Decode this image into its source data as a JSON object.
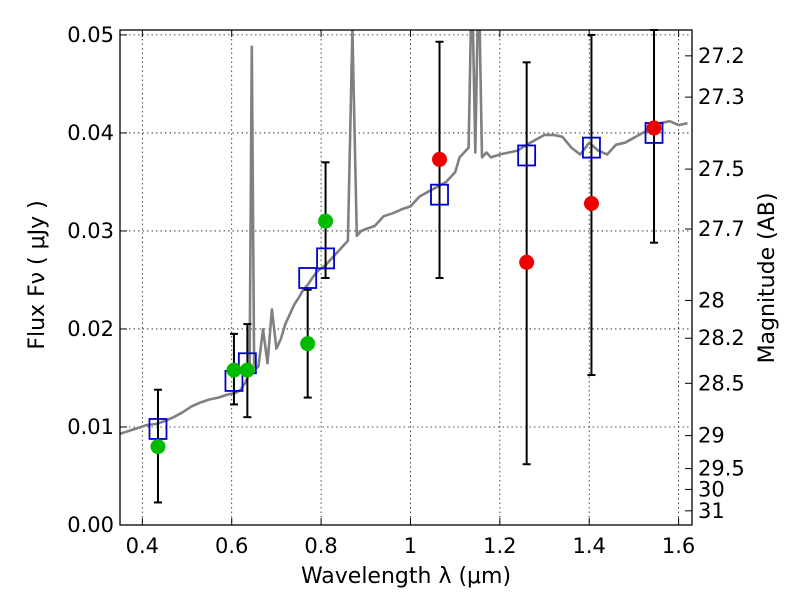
{
  "chart_data": {
    "type": "scatter",
    "xlabel": "Wavelength  λ (μm)",
    "ylabel": "Flux  Fν  ( μJy )",
    "y2label": "Magnitude (AB)",
    "xlim": [
      0.35,
      1.63
    ],
    "ylim": [
      0.0,
      0.0505
    ],
    "grid": true,
    "x_ticks": [
      {
        "value": 0.4,
        "label": "0.4"
      },
      {
        "value": 0.6,
        "label": "0.6"
      },
      {
        "value": 0.8,
        "label": "0.8"
      },
      {
        "value": 1.0,
        "label": "1"
      },
      {
        "value": 1.2,
        "label": "1.2"
      },
      {
        "value": 1.4,
        "label": "1.4"
      },
      {
        "value": 1.6,
        "label": "1.6"
      }
    ],
    "y_ticks": [
      {
        "value": 0.0,
        "label": "0.00"
      },
      {
        "value": 0.01,
        "label": "0.01"
      },
      {
        "value": 0.02,
        "label": "0.02"
      },
      {
        "value": 0.03,
        "label": "0.03"
      },
      {
        "value": 0.04,
        "label": "0.04"
      },
      {
        "value": 0.05,
        "label": "0.05"
      }
    ],
    "y2_ticks": [
      {
        "mag": 27.2,
        "label": "27.2"
      },
      {
        "mag": 27.3,
        "label": "27.3"
      },
      {
        "mag": 27.5,
        "label": "27.5"
      },
      {
        "mag": 27.7,
        "label": "27.7"
      },
      {
        "mag": 28,
        "label": "28"
      },
      {
        "mag": 28.2,
        "label": "28.2"
      },
      {
        "mag": 28.5,
        "label": "28.5"
      },
      {
        "mag": 29,
        "label": "29"
      },
      {
        "mag": 29.5,
        "label": "29.5"
      },
      {
        "mag": 30,
        "label": "30"
      },
      {
        "mag": 31,
        "label": "31"
      }
    ],
    "series": [
      {
        "kind": "line",
        "color": "#808080",
        "x": [
          0.35,
          0.37,
          0.39,
          0.41,
          0.43,
          0.45,
          0.47,
          0.49,
          0.51,
          0.53,
          0.55,
          0.57,
          0.59,
          0.61,
          0.62,
          0.63,
          0.635,
          0.64,
          0.645,
          0.65,
          0.655,
          0.66,
          0.67,
          0.68,
          0.69,
          0.7,
          0.71,
          0.72,
          0.73,
          0.74,
          0.75,
          0.76,
          0.77,
          0.78,
          0.79,
          0.8,
          0.81,
          0.82,
          0.83,
          0.84,
          0.85,
          0.86,
          0.87,
          0.88,
          0.89,
          0.9,
          0.92,
          0.94,
          0.96,
          0.98,
          1.0,
          1.02,
          1.04,
          1.06,
          1.08,
          1.1,
          1.11,
          1.12,
          1.13,
          1.135,
          1.14,
          1.145,
          1.15,
          1.155,
          1.16,
          1.17,
          1.18,
          1.2,
          1.22,
          1.24,
          1.26,
          1.28,
          1.3,
          1.32,
          1.34,
          1.36,
          1.38,
          1.4,
          1.42,
          1.44,
          1.46,
          1.48,
          1.5,
          1.52,
          1.54,
          1.56,
          1.58,
          1.6,
          1.62
        ],
        "y": [
          0.0093,
          0.0096,
          0.0099,
          0.0102,
          0.0103,
          0.0106,
          0.011,
          0.0115,
          0.0121,
          0.0125,
          0.0128,
          0.013,
          0.0133,
          0.0135,
          0.0138,
          0.0145,
          0.015,
          0.016,
          0.0488,
          0.0165,
          0.016,
          0.0162,
          0.02,
          0.0165,
          0.022,
          0.018,
          0.019,
          0.0205,
          0.0215,
          0.0225,
          0.0232,
          0.024,
          0.0245,
          0.0252,
          0.0258,
          0.0262,
          0.0265,
          0.027,
          0.0275,
          0.028,
          0.0285,
          0.029,
          0.0505,
          0.0295,
          0.03,
          0.0302,
          0.0305,
          0.0315,
          0.0318,
          0.0322,
          0.0325,
          0.0335,
          0.034,
          0.0345,
          0.035,
          0.036,
          0.0375,
          0.038,
          0.0385,
          0.0505,
          0.0505,
          0.038,
          0.0505,
          0.0505,
          0.0375,
          0.038,
          0.0375,
          0.0378,
          0.038,
          0.0382,
          0.0388,
          0.0393,
          0.0398,
          0.0398,
          0.0396,
          0.0385,
          0.0378,
          0.039,
          0.0382,
          0.0378,
          0.0388,
          0.039,
          0.0395,
          0.04,
          0.0405,
          0.041,
          0.0412,
          0.0408,
          0.041
        ]
      },
      {
        "kind": "open-square",
        "color": "#0000cc",
        "x": [
          0.435,
          0.605,
          0.635,
          0.77,
          0.81,
          1.065,
          1.26,
          1.405,
          1.545
        ],
        "y": [
          0.0098,
          0.0147,
          0.0165,
          0.0252,
          0.0272,
          0.0337,
          0.0377,
          0.0385,
          0.04
        ]
      },
      {
        "kind": "errorbar",
        "color": "#000000",
        "x": [
          0.435,
          0.605,
          0.635,
          0.77,
          0.81,
          1.065,
          1.26,
          1.405,
          1.545
        ],
        "y": [
          0.008,
          0.0158,
          0.0158,
          0.0185,
          0.031,
          0.0373,
          0.0268,
          0.0328,
          0.0405
        ],
        "ylow": [
          0.0023,
          0.0123,
          0.011,
          0.013,
          0.0252,
          0.0252,
          0.0062,
          0.0153,
          0.0288
        ],
        "yhigh": [
          0.0138,
          0.0195,
          0.0205,
          0.024,
          0.037,
          0.0493,
          0.0472,
          0.05,
          0.0505
        ]
      },
      {
        "kind": "filled-circle",
        "color": "#00bb00",
        "x": [
          0.435,
          0.605,
          0.635,
          0.77,
          0.81
        ],
        "y": [
          0.008,
          0.0158,
          0.0158,
          0.0185,
          0.031
        ]
      },
      {
        "kind": "filled-circle",
        "color": "#ee0000",
        "x": [
          1.065,
          1.26,
          1.405,
          1.545
        ],
        "y": [
          0.0373,
          0.0268,
          0.0328,
          0.0405
        ]
      }
    ]
  }
}
